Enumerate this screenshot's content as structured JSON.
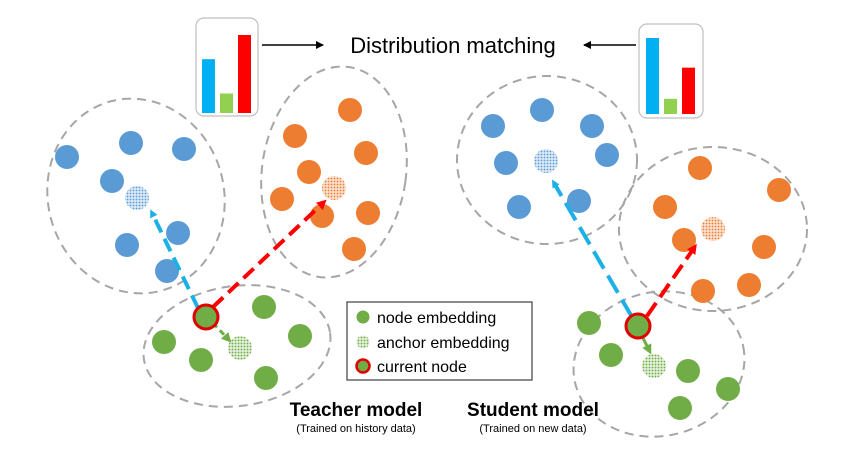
{
  "title": "Distribution matching",
  "teacher": {
    "title": "Teacher model",
    "subtitle": "(Trained on history data)"
  },
  "student": {
    "title": "Student model",
    "subtitle": "(Trained on new data)"
  },
  "legend": {
    "node": "node embedding",
    "anchor": "anchor embedding",
    "current": "current node"
  },
  "colors": {
    "blue_node": "#5b9bd5",
    "orange_node": "#ed7d31",
    "green_node": "#70ad47",
    "blue_arrow": "#1cb0e6",
    "red_arrow": "#ff0000",
    "dashed_outline": "#a6a6a6"
  },
  "bars_teacher": [
    {
      "color": "#00b0f0",
      "value": 0.69
    },
    {
      "color": "#92d050",
      "value": 0.25
    },
    {
      "color": "#ff0000",
      "value": 1.0
    }
  ],
  "bars_student": [
    {
      "color": "#00b0f0",
      "value": 1.0
    },
    {
      "color": "#92d050",
      "value": 0.2
    },
    {
      "color": "#ff0000",
      "value": 0.61
    }
  ]
}
